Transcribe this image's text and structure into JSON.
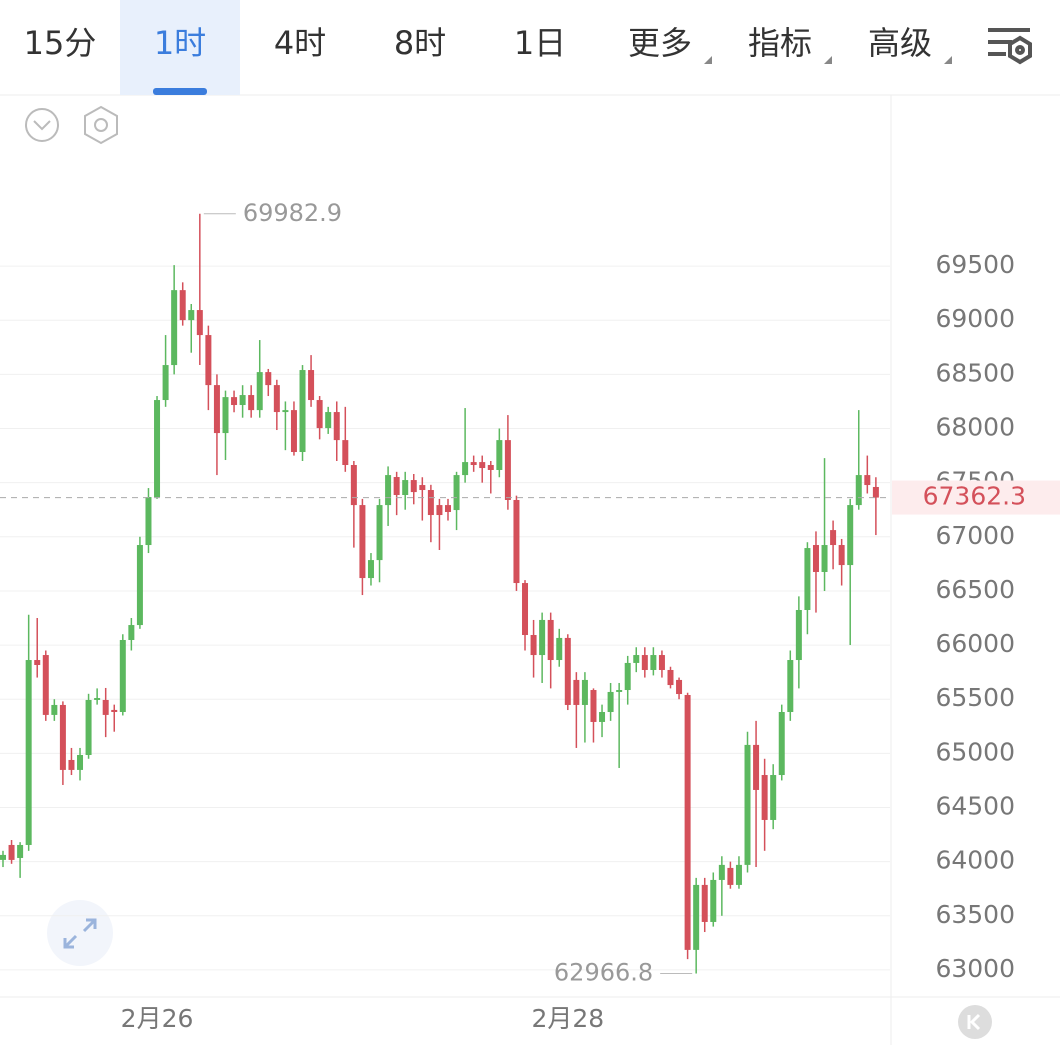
{
  "toolbar": {
    "tabs": [
      "15分",
      "1时",
      "4时",
      "8时",
      "1日",
      "更多",
      "指标",
      "高级"
    ],
    "active": 1,
    "dropdown_from": 5
  },
  "chart_data": {
    "type": "candlestick",
    "categories": [
      null,
      null,
      null,
      null,
      null,
      null,
      null,
      null,
      null,
      null,
      null,
      null,
      null,
      null,
      null,
      null,
      null,
      null,
      "2月26",
      null,
      null,
      null,
      null,
      null,
      null,
      null,
      null,
      null,
      null,
      null,
      null,
      null,
      null,
      null,
      null,
      null,
      null,
      null,
      null,
      null,
      null,
      null,
      null,
      null,
      null,
      null,
      null,
      null,
      null,
      null,
      null,
      null,
      null,
      null,
      null,
      null,
      null,
      null,
      null,
      null,
      null,
      null,
      null,
      null,
      null,
      null,
      "2月28",
      null,
      null,
      null,
      null,
      null,
      null,
      null,
      null,
      null,
      null,
      null,
      null,
      null,
      null,
      null,
      null,
      null,
      null,
      null,
      null,
      null,
      null,
      null,
      null,
      null,
      null,
      null,
      null,
      null,
      null,
      null,
      null,
      null,
      null,
      null,
      null
    ],
    "open": [
      64016,
      64154,
      64034,
      64154,
      65862,
      65908,
      65355,
      65447,
      64939,
      64847,
      64985,
      65493,
      65493,
      65401,
      65382,
      66047,
      66185,
      66924,
      67367,
      68263,
      68586,
      69278,
      69001,
      69094,
      68863,
      68401,
      67958,
      68290,
      68217,
      68309,
      68170,
      68521,
      68401,
      68152,
      68170,
      67783,
      68540,
      68263,
      68004,
      68152,
      67893,
      67663,
      67293,
      66619,
      66785,
      67293,
      67552,
      67386,
      67524,
      67478,
      67432,
      67293,
      67293,
      67247,
      67570,
      67690,
      67690,
      67663,
      67617,
      67893,
      67340,
      66573,
      66093,
      65908,
      66232,
      65862,
      66066,
      65678,
      65447,
      65585,
      65290,
      65382,
      65567,
      65585,
      65835,
      65908,
      65770,
      65908,
      65770,
      65678,
      65539,
      63185,
      63785,
      63443,
      63831,
      63942,
      63785,
      63970,
      65078,
      64800,
      64385,
      64800,
      65382,
      65862,
      66324,
      66924,
      66675,
      67062,
      66924,
      66739,
      67293,
      67570,
      67460
    ],
    "high": [
      64100,
      64200,
      64180,
      66280,
      66250,
      65950,
      65500,
      65480,
      65050,
      65050,
      65550,
      65600,
      65604,
      65450,
      66100,
      66250,
      67000,
      67450,
      68300,
      68863,
      69509,
      69350,
      69150,
      69982.9,
      68950,
      68500,
      68350,
      68350,
      68400,
      68400,
      68817,
      68550,
      68450,
      68250,
      68250,
      68586,
      68678,
      68300,
      68200,
      68250,
      68200,
      67700,
      67350,
      66850,
      67350,
      67650,
      67600,
      67600,
      67580,
      67550,
      67480,
      67350,
      67350,
      67600,
      68189,
      67750,
      67750,
      67700,
      68000,
      68124,
      67380,
      66600,
      66232,
      66300,
      66300,
      66150,
      66100,
      65750,
      65750,
      65600,
      65450,
      65650,
      65650,
      65900,
      65980,
      65980,
      65980,
      65950,
      65800,
      65700,
      65560,
      63850,
      63850,
      63900,
      64050,
      64000,
      64050,
      65200,
      65300,
      64950,
      64900,
      65450,
      65950,
      66450,
      66950,
      67050,
      67727,
      67150,
      66980,
      67350,
      68170,
      67750,
      67550
    ],
    "low": [
      63950,
      63980,
      63850,
      64100,
      65700,
      65300,
      65300,
      64708,
      64800,
      64750,
      64950,
      65450,
      65150,
      65200,
      65350,
      65950,
      66150,
      66850,
      67350,
      68200,
      68500,
      68950,
      68700,
      68586,
      68170,
      67570,
      67709,
      68150,
      68100,
      68100,
      68100,
      68300,
      67986,
      67800,
      67750,
      67700,
      68200,
      67900,
      67950,
      67700,
      67600,
      66900,
      66462,
      66550,
      66580,
      67100,
      67200,
      67250,
      67300,
      67150,
      66950,
      66878,
      67150,
      67062,
      67500,
      67600,
      67500,
      67400,
      67550,
      67250,
      66500,
      65950,
      65700,
      65650,
      65600,
      65800,
      65400,
      65050,
      65100,
      65100,
      65150,
      65300,
      64865,
      65450,
      65750,
      65700,
      65720,
      65700,
      65600,
      65500,
      63100,
      62966.8,
      63350,
      63400,
      63500,
      63750,
      63750,
      63900,
      63950,
      64100,
      64300,
      64750,
      65300,
      65600,
      66100,
      66300,
      66500,
      66700,
      66550,
      66001,
      67250,
      67400,
      67016
    ],
    "close": [
      64062,
      64016,
      64154,
      65862,
      65816,
      65355,
      65447,
      64847,
      64847,
      64985,
      65493,
      65511,
      65355,
      65382,
      66047,
      66185,
      66924,
      67367,
      68263,
      68586,
      69278,
      69001,
      69094,
      68863,
      68401,
      67958,
      68290,
      68217,
      68309,
      68170,
      68521,
      68401,
      68152,
      68170,
      67783,
      68540,
      68263,
      68004,
      68152,
      67893,
      67663,
      67293,
      66619,
      66785,
      67293,
      67570,
      67386,
      67524,
      67413,
      67432,
      67201,
      67201,
      67229,
      67570,
      67690,
      67663,
      67635,
      67617,
      67893,
      67340,
      66573,
      66093,
      65908,
      66232,
      65862,
      66066,
      65447,
      65447,
      65678,
      65290,
      65382,
      65567,
      65585,
      65835,
      65908,
      65770,
      65908,
      65770,
      65631,
      65548,
      63185,
      63785,
      63443,
      63831,
      63970,
      63785,
      63970,
      65078,
      64662,
      64385,
      64800,
      65382,
      65862,
      66324,
      66896,
      66675,
      66924,
      66924,
      66739,
      67293,
      67570,
      67478,
      67362.3
    ],
    "up_color": "#5cb85f",
    "down_color": "#d4505a",
    "ylim": [
      62750,
      71080
    ],
    "yticks": [
      63000,
      63500,
      64000,
      64500,
      65000,
      65500,
      66000,
      66500,
      67000,
      67500,
      68000,
      68500,
      69000,
      69500
    ],
    "grid": true,
    "high_marker": 69982.9,
    "low_marker": 62966.8,
    "last_price": 67362.3
  }
}
